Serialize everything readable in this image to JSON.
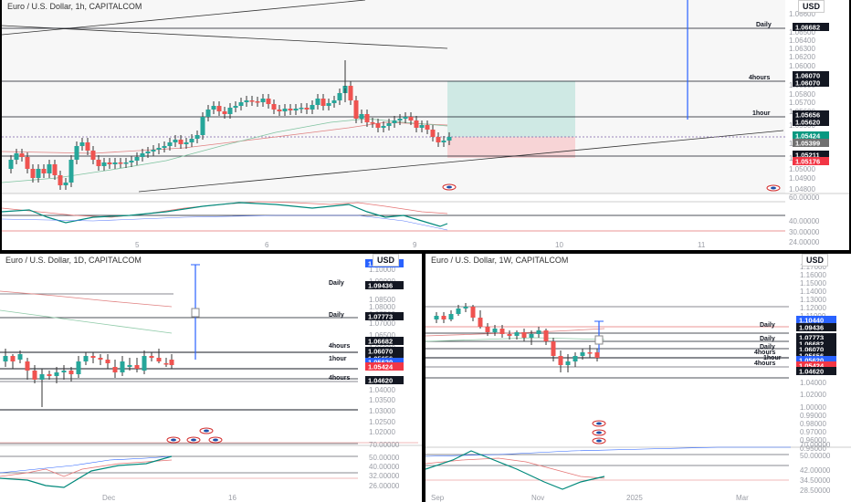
{
  "colors": {
    "up": "#26a69a",
    "down": "#ef5350",
    "axis_text": "#9a9da5",
    "grid": "#131722",
    "line_blue": "#2962ff",
    "tag_dark": "#131722",
    "tag_blue": "#2962ff",
    "tag_red": "#f23645",
    "tag_teal": "#089981",
    "zone_green": "#cfe9e4",
    "zone_red": "#f7d4d6"
  },
  "panes": {
    "top": {
      "title": "Euro / U.S. Dollar, 1h, CAPITALCOM",
      "currency": "USD",
      "price_ticks": [
        "1.06600",
        "1.06500",
        "1.06400",
        "1.06300",
        "1.06200",
        "1.06000",
        "1.05900",
        "1.05800",
        "1.05700",
        "1.05600",
        "1.05500",
        "1.05400",
        "1.05300",
        "1.05000",
        "1.04900",
        "1.04800"
      ],
      "line_labels": [
        "Daily",
        "4hours",
        "1hour"
      ],
      "tags": [
        "1.06682",
        "1.06070",
        "1.06070",
        "1.05656",
        "1.05620",
        "1.05424",
        "1.05399",
        "1.05211",
        "1.05176"
      ],
      "osc_ticks": [
        "60.00000",
        "40.00000",
        "30.00000",
        "24.00000"
      ],
      "time_labels": [
        "5",
        "6",
        "9",
        "10",
        "11"
      ]
    },
    "bottom_left": {
      "title": "Euro / U.S. Dollar, 1D, CAPITALCOM",
      "currency": "USD",
      "price_ticks": [
        "1.10000",
        "1.09000",
        "1.08500",
        "1.08000",
        "1.07500",
        "1.07000",
        "1.06500",
        "1.06000",
        "1.05000",
        "1.04000",
        "1.03500",
        "1.03000",
        "1.02500",
        "1.02000"
      ],
      "line_labels": [
        "Daily",
        "Daily",
        "4hours",
        "1hour",
        "4hours"
      ],
      "tags": [
        "1.10440",
        "1.09436",
        "1.07773",
        "1.06682",
        "1.06070",
        "1.05656",
        "1.05620",
        "1.05424",
        "1.04620"
      ],
      "osc_ticks": [
        "70.00000",
        "50.00000",
        "40.00000",
        "32.00000",
        "26.00000"
      ],
      "time_labels": [
        "Dec",
        "16"
      ]
    },
    "bottom_right": {
      "title": "Euro / U.S. Dollar, 1W, CAPITALCOM",
      "currency": "USD",
      "price_ticks": [
        "1.17000",
        "1.16000",
        "1.15000",
        "1.14000",
        "1.13000",
        "1.12000",
        "1.11000",
        "1.10000",
        "1.04000",
        "1.02000",
        "1.00000",
        "0.99000",
        "0.98000",
        "0.97000",
        "0.96000",
        "0.95000"
      ],
      "line_labels": [
        "Daily",
        "Daily",
        "Daily",
        "4hours",
        "1hour",
        "4hours"
      ],
      "tags": [
        "1.10440",
        "1.09436",
        "1.07773",
        "1.06682",
        "1.06070",
        "1.05656",
        "1.05620",
        "1.05424",
        "1.04620"
      ],
      "osc_ticks": [
        "70.00000",
        "50.00000",
        "42.00000",
        "34.50000",
        "28.50000"
      ],
      "time_labels": [
        "Sep",
        "Nov",
        "2025",
        "Mar"
      ]
    }
  }
}
